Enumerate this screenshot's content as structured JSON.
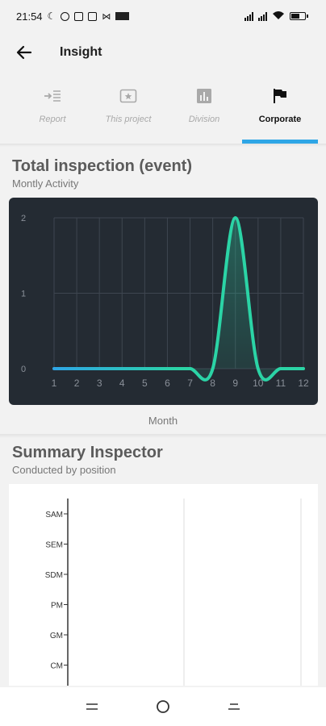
{
  "status_bar": {
    "time": "21:54"
  },
  "app_bar": {
    "title": "Insight",
    "back_icon": "arrow-left-icon"
  },
  "tabs": [
    {
      "label": "Report",
      "icon": "indent-icon",
      "active": false
    },
    {
      "label": "This project",
      "icon": "ticket-star-icon",
      "active": false
    },
    {
      "label": "Division",
      "icon": "bar-chart-icon",
      "active": false
    },
    {
      "label": "Corporate",
      "icon": "flag-icon",
      "active": true
    }
  ],
  "accent_color": "#2fa6e6",
  "inspection_section": {
    "title": "Total inspection (event)",
    "subtitle": "Montly Activity",
    "x_caption": "Month"
  },
  "summary_section": {
    "title": "Summary Inspector",
    "subtitle": "Conducted by position"
  },
  "chart_data": [
    {
      "type": "area",
      "x": [
        1,
        2,
        3,
        4,
        5,
        6,
        7,
        8,
        9,
        10,
        11,
        12
      ],
      "values": [
        0,
        0,
        0,
        0,
        0,
        0,
        0,
        0,
        2,
        0,
        0,
        0
      ],
      "xticks": [
        "1",
        "2",
        "3",
        "4",
        "5",
        "6",
        "7",
        "8",
        "9",
        "10",
        "11",
        "12"
      ],
      "yticks": [
        "0",
        "1",
        "2"
      ],
      "ylim": [
        0,
        2
      ],
      "grid": true,
      "line_color": "#2bd4a6",
      "start_color": "#2fa6e6",
      "background": "#242b33"
    },
    {
      "type": "bar",
      "orientation": "horizontal",
      "categories": [
        "SAM",
        "SEM",
        "SDM",
        "PM",
        "GM",
        "CM"
      ],
      "values": [
        0,
        0,
        0,
        0,
        0,
        0
      ],
      "grid": true
    }
  ]
}
